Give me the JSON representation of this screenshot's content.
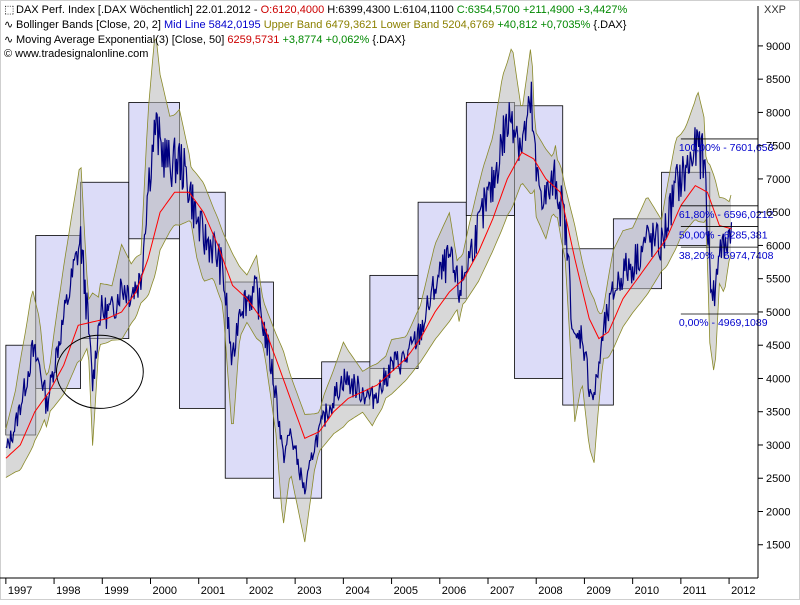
{
  "legend": {
    "line1": {
      "name": "DAX Perf. Index [.DAX  Wöchentlich] 22.01.2012 - ",
      "open": "O:6120,4000",
      "high": "H:6399,4300",
      "low": "L:6104,1100",
      "close": "C:6354,5700",
      "change": "+211,4900",
      "pct": "+3,4427%"
    },
    "line2": {
      "name": "Bollinger Bands [Close, 20, 2]",
      "mid": "Mid Line 5842,0195",
      "upper": "Upper Band 6479,3621",
      "lower": "Lower Band 5204,6769",
      "change": "+40,812",
      "pct": "+0,7035%",
      "sym": "{.DAX}"
    },
    "line3": {
      "name": "Moving Average Exponential(3) [Close, 50]",
      "value": "6259,5731",
      "change": "+3,8774",
      "pct": "+0,062%",
      "sym": "{.DAX}"
    },
    "line4": {
      "text": "© www.tradesignalonline.com"
    }
  },
  "currency": "XXP",
  "colors": {
    "price": "#000080",
    "ema": "#ff0000",
    "band_fill": "#b8b8b8",
    "band_line": "#8a8a2a",
    "box_fill": "#dcdcf8",
    "box_stroke": "#000000",
    "fib_text": "#0000cc"
  },
  "chart_data": {
    "type": "line",
    "title": "DAX Perf. Index [.DAX Wöchentlich]",
    "x_range": [
      1996.92,
      2012.6
    ],
    "y_range": [
      1000,
      9600
    ],
    "grid": false,
    "x_ticks": [
      "1997",
      "1998",
      "1999",
      "2000",
      "2001",
      "2002",
      "2003",
      "2004",
      "2005",
      "2006",
      "2007",
      "2008",
      "2009",
      "2010",
      "2011",
      "2012"
    ],
    "y_ticks": [
      1500,
      2000,
      2500,
      3000,
      3500,
      4000,
      4500,
      5000,
      5500,
      6000,
      6500,
      7000,
      7500,
      8000,
      8500,
      9000
    ],
    "series": [
      {
        "name": "DAX Perf. Index",
        "points": [
          [
            1997.0,
            2900
          ],
          [
            1997.2,
            3300
          ],
          [
            1997.4,
            3900
          ],
          [
            1997.55,
            4400
          ],
          [
            1997.7,
            4200
          ],
          [
            1997.85,
            3600
          ],
          [
            1998.0,
            4200
          ],
          [
            1998.2,
            4900
          ],
          [
            1998.4,
            5600
          ],
          [
            1998.55,
            6100
          ],
          [
            1998.7,
            4900
          ],
          [
            1998.8,
            3900
          ],
          [
            1998.95,
            5000
          ],
          [
            1999.2,
            5000
          ],
          [
            1999.4,
            5400
          ],
          [
            1999.6,
            5300
          ],
          [
            1999.8,
            5500
          ],
          [
            1999.95,
            6900
          ],
          [
            2000.1,
            7800
          ],
          [
            2000.2,
            7500
          ],
          [
            2000.4,
            7200
          ],
          [
            2000.6,
            7300
          ],
          [
            2000.8,
            6900
          ],
          [
            2000.95,
            6400
          ],
          [
            2001.1,
            6100
          ],
          [
            2001.3,
            6000
          ],
          [
            2001.5,
            5600
          ],
          [
            2001.7,
            4200
          ],
          [
            2001.85,
            5100
          ],
          [
            2002.0,
            5200
          ],
          [
            2002.2,
            5300
          ],
          [
            2002.4,
            4600
          ],
          [
            2002.6,
            3800
          ],
          [
            2002.75,
            2800
          ],
          [
            2002.9,
            3200
          ],
          [
            2003.1,
            2600
          ],
          [
            2003.2,
            2300
          ],
          [
            2003.4,
            3000
          ],
          [
            2003.6,
            3400
          ],
          [
            2003.8,
            3700
          ],
          [
            2004.0,
            4000
          ],
          [
            2004.2,
            3900
          ],
          [
            2004.4,
            3800
          ],
          [
            2004.6,
            3700
          ],
          [
            2004.8,
            3900
          ],
          [
            2005.0,
            4200
          ],
          [
            2005.3,
            4300
          ],
          [
            2005.6,
            4700
          ],
          [
            2005.9,
            5400
          ],
          [
            2006.2,
            5800
          ],
          [
            2006.4,
            5300
          ],
          [
            2006.6,
            5800
          ],
          [
            2006.9,
            6500
          ],
          [
            2007.1,
            6900
          ],
          [
            2007.3,
            7600
          ],
          [
            2007.5,
            8000
          ],
          [
            2007.7,
            7500
          ],
          [
            2007.9,
            8100
          ],
          [
            2008.0,
            7000
          ],
          [
            2008.2,
            6700
          ],
          [
            2008.4,
            7000
          ],
          [
            2008.6,
            6300
          ],
          [
            2008.8,
            4500
          ],
          [
            2008.95,
            4700
          ],
          [
            2009.1,
            3900
          ],
          [
            2009.2,
            3700
          ],
          [
            2009.4,
            4700
          ],
          [
            2009.6,
            5300
          ],
          [
            2009.8,
            5600
          ],
          [
            2010.0,
            5700
          ],
          [
            2010.3,
            6100
          ],
          [
            2010.6,
            6000
          ],
          [
            2010.9,
            6900
          ],
          [
            2011.1,
            7100
          ],
          [
            2011.35,
            7500
          ],
          [
            2011.5,
            7200
          ],
          [
            2011.6,
            5600
          ],
          [
            2011.7,
            5200
          ],
          [
            2011.8,
            6000
          ],
          [
            2011.9,
            5900
          ],
          [
            2012.05,
            6350
          ]
        ]
      },
      {
        "name": "Moving Average Exponential(3) [Close, 50]",
        "points": [
          [
            1997.0,
            2800
          ],
          [
            1997.3,
            3000
          ],
          [
            1997.6,
            3500
          ],
          [
            1997.9,
            3800
          ],
          [
            1998.2,
            4200
          ],
          [
            1998.5,
            4800
          ],
          [
            1998.8,
            4850
          ],
          [
            1999.1,
            4900
          ],
          [
            1999.4,
            5000
          ],
          [
            1999.7,
            5300
          ],
          [
            1999.95,
            5800
          ],
          [
            2000.2,
            6500
          ],
          [
            2000.5,
            6800
          ],
          [
            2000.8,
            6800
          ],
          [
            2001.1,
            6500
          ],
          [
            2001.4,
            6000
          ],
          [
            2001.7,
            5400
          ],
          [
            2002.0,
            5200
          ],
          [
            2002.3,
            4900
          ],
          [
            2002.6,
            4300
          ],
          [
            2002.9,
            3700
          ],
          [
            2003.2,
            3100
          ],
          [
            2003.5,
            3200
          ],
          [
            2003.8,
            3500
          ],
          [
            2004.1,
            3700
          ],
          [
            2004.4,
            3800
          ],
          [
            2004.7,
            3900
          ],
          [
            2005.0,
            4100
          ],
          [
            2005.3,
            4300
          ],
          [
            2005.6,
            4600
          ],
          [
            2005.9,
            5000
          ],
          [
            2006.2,
            5300
          ],
          [
            2006.5,
            5500
          ],
          [
            2006.8,
            5900
          ],
          [
            2007.1,
            6400
          ],
          [
            2007.4,
            7000
          ],
          [
            2007.7,
            7400
          ],
          [
            2007.95,
            7300
          ],
          [
            2008.2,
            7000
          ],
          [
            2008.5,
            6800
          ],
          [
            2008.8,
            5800
          ],
          [
            2009.1,
            4900
          ],
          [
            2009.3,
            4600
          ],
          [
            2009.5,
            4700
          ],
          [
            2009.8,
            5200
          ],
          [
            2010.1,
            5500
          ],
          [
            2010.4,
            5800
          ],
          [
            2010.7,
            6100
          ],
          [
            2011.0,
            6600
          ],
          [
            2011.3,
            6900
          ],
          [
            2011.55,
            6800
          ],
          [
            2011.8,
            6300
          ],
          [
            2012.05,
            6250
          ]
        ]
      }
    ],
    "range_boxes": [
      [
        1997.0,
        1997.62,
        3150,
        4500
      ],
      [
        1997.62,
        1998.55,
        3850,
        6150
      ],
      [
        1998.55,
        1999.55,
        4600,
        6950
      ],
      [
        1999.55,
        2000.6,
        6100,
        8150
      ],
      [
        2000.6,
        2001.55,
        3550,
        6800
      ],
      [
        2001.55,
        2002.55,
        2500,
        5450
      ],
      [
        2002.55,
        2003.55,
        2200,
        4000
      ],
      [
        2003.55,
        2004.55,
        3600,
        4250
      ],
      [
        2004.55,
        2005.55,
        4150,
        5550
      ],
      [
        2005.55,
        2006.55,
        5200,
        6650
      ],
      [
        2006.55,
        2007.55,
        6450,
        8150
      ],
      [
        2007.55,
        2008.55,
        4000,
        8100
      ],
      [
        2008.55,
        2009.6,
        3600,
        5950
      ],
      [
        2009.6,
        2010.6,
        5350,
        6400
      ],
      [
        2010.6,
        2011.6,
        6000,
        7100
      ]
    ],
    "fibonacci": {
      "x_start": 2011.0,
      "x_end": 2012.6,
      "levels": [
        {
          "label": "100,00% - 7601,653",
          "value": 7601.653
        },
        {
          "label": "61,80% - 6596,0212",
          "value": 6596.0212
        },
        {
          "label": "50,00% - 6285,381",
          "value": 6285.381
        },
        {
          "label": "38,20% - 5974,7408",
          "value": 5974.7408
        },
        {
          "label": "0,00% - 4969,1089",
          "value": 4969.1089
        }
      ]
    },
    "annotation_circle": {
      "x": 1998.95,
      "y": 4100,
      "rx": 0.9,
      "ry": 550
    }
  }
}
